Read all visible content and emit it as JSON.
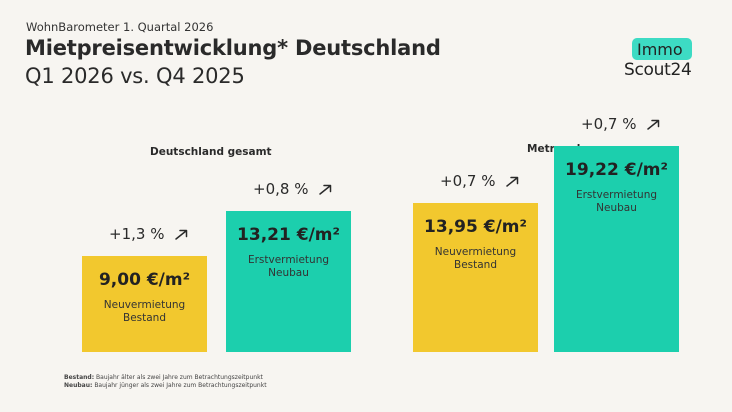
{
  "header": {
    "eyebrow": "WohnBarometer 1. Quartal 2026",
    "title": "Mietpreisentwicklung* Deutschland",
    "subtitle": "Q1 2026 vs. Q4 2025"
  },
  "logo": {
    "top": "Immo",
    "bottom": "Scout24"
  },
  "colors": {
    "bestand": "#f2c82e",
    "neubau": "#1ccfad",
    "background": "#f7f5f1"
  },
  "chart_data": [
    {
      "type": "bar",
      "title": "Deutschland gesamt",
      "categories": [
        "Neuvermietung Bestand",
        "Erstvermietung Neubau"
      ],
      "values": [
        9.0,
        13.21
      ],
      "unit": "€/m²",
      "value_labels": [
        "9,00 €/m²",
        "13,21 €/m²"
      ],
      "label_lines": [
        [
          "Neuvermietung",
          "Bestand"
        ],
        [
          "Erstvermietung",
          "Neubau"
        ]
      ],
      "changes": [
        "+1,3 %",
        "+0,8 %"
      ],
      "colors": [
        "#f2c82e",
        "#1ccfad"
      ]
    },
    {
      "type": "bar",
      "title": "Metropolen",
      "categories": [
        "Neuvermietung Bestand",
        "Erstvermietung Neubau"
      ],
      "values": [
        13.95,
        19.22
      ],
      "unit": "€/m²",
      "value_labels": [
        "13,95 €/m²",
        "19,22 €/m²"
      ],
      "label_lines": [
        [
          "Neuvermietung",
          "Bestand"
        ],
        [
          "Erstvermietung",
          "Neubau"
        ]
      ],
      "changes": [
        "+0,7 %",
        "+0,7 %"
      ],
      "colors": [
        "#f2c82e",
        "#1ccfad"
      ]
    }
  ],
  "footnotes": [
    {
      "term": "Bestand:",
      "text": "Baujahr älter als zwei Jahre zum Betrachtungszeitpunkt"
    },
    {
      "term": "Neubau:",
      "text": "Baujahr jünger als zwei Jahre zum Betrachtungszeitpunkt"
    }
  ]
}
